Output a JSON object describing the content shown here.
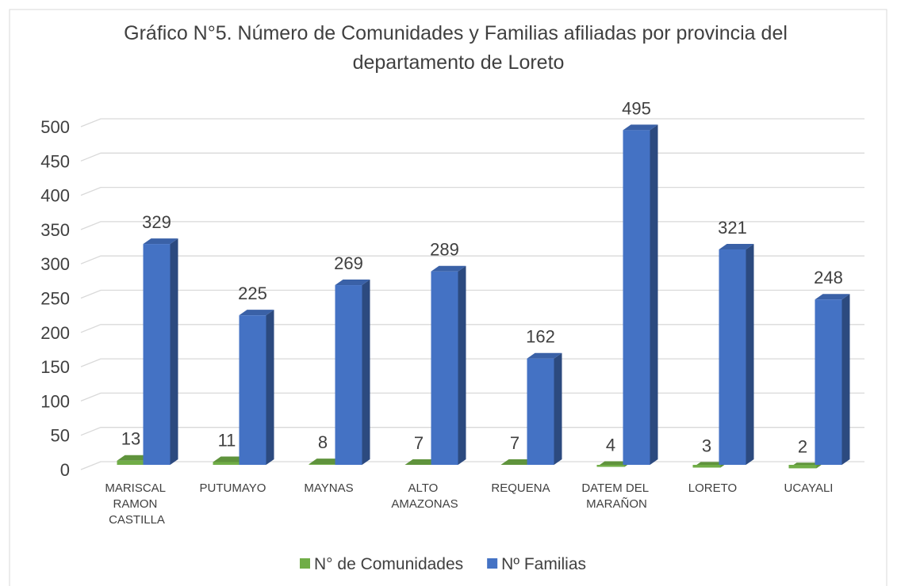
{
  "chart_data": {
    "type": "bar3d",
    "title": "Gráfico N°5. Número de Comunidades y Familias afiliadas por provincia del departamento de Loreto",
    "categories": [
      "MARISCAL RAMON CASTILLA",
      "PUTUMAYO",
      "MAYNAS",
      "ALTO AMAZONAS",
      "REQUENA",
      "DATEM DEL MARAÑON",
      "LORETO",
      "UCAYALI"
    ],
    "series": [
      {
        "name": "N° de Comunidades",
        "color": "#70ad47",
        "values": [
          13,
          11,
          8,
          7,
          7,
          4,
          3,
          2
        ]
      },
      {
        "name": "Nº Familias",
        "color": "#4472c4",
        "values": [
          329,
          225,
          269,
          289,
          162,
          495,
          321,
          248
        ]
      }
    ],
    "ylim": [
      0,
      500
    ],
    "yticks": [
      0,
      50,
      100,
      150,
      200,
      250,
      300,
      350,
      400,
      450,
      500
    ],
    "grid": true,
    "legend": "bottom"
  }
}
